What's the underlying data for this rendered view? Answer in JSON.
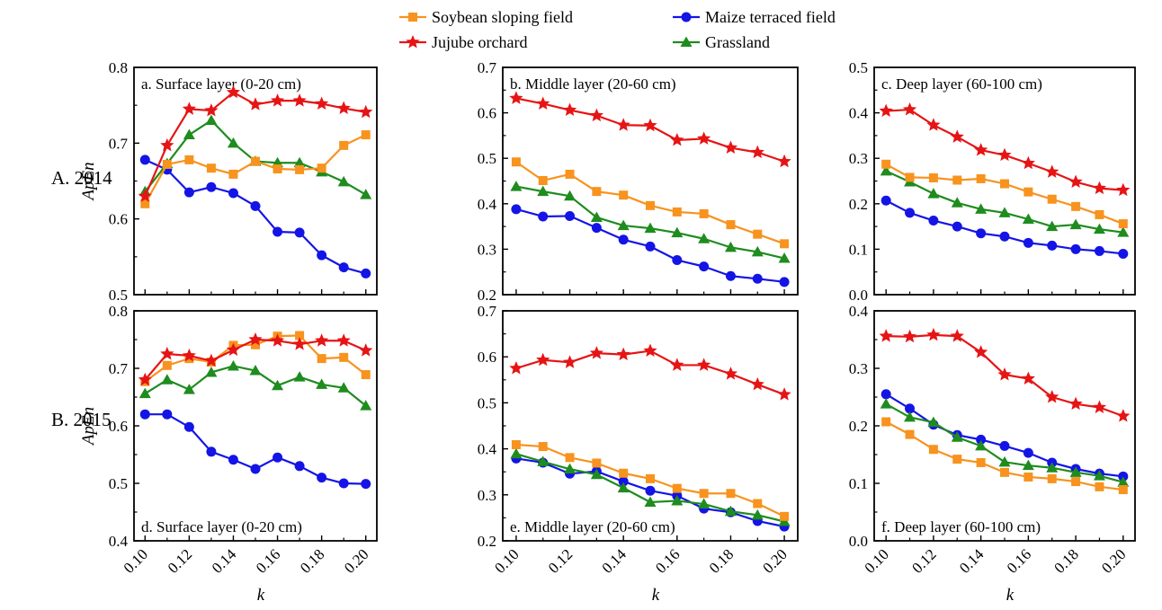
{
  "chart_data": {
    "type": "line",
    "legend": {
      "placement": "top-center",
      "entries": [
        {
          "name": "Soybean sloping field",
          "color": "#f7931e",
          "marker": "square"
        },
        {
          "name": "Maize terraced field",
          "color": "#1414e6",
          "marker": "circle"
        },
        {
          "name": "Jujube orchard",
          "color": "#e61414",
          "marker": "star"
        },
        {
          "name": "Grassland",
          "color": "#1e8c1e",
          "marker": "triangle"
        }
      ]
    },
    "row_labels": [
      "A. 2014",
      "B. 2015"
    ],
    "ylabel": "ApEn",
    "xlabel": "k",
    "x": [
      0.1,
      0.11,
      0.12,
      0.13,
      0.14,
      0.15,
      0.16,
      0.17,
      0.18,
      0.19,
      0.2
    ],
    "x_tick_values": [
      0.1,
      0.12,
      0.14,
      0.16,
      0.18,
      0.2
    ],
    "x_tick_labels": [
      "0.10",
      "0.12",
      "0.14",
      "0.16",
      "0.18",
      "0.20"
    ],
    "xlim": [
      0.095,
      0.205
    ],
    "grid": false,
    "panels": [
      {
        "label": "a. Surface layer (0-20 cm)",
        "label_pos": "top-left",
        "ylim": [
          0.5,
          0.8
        ],
        "yticks": [
          0.5,
          0.6,
          0.7,
          0.8
        ],
        "ytick_labels": [
          "0.5",
          "0.6",
          "0.7",
          "0.8"
        ],
        "series": [
          {
            "name": "Soybean sloping field",
            "values": [
              0.62,
              0.672,
              0.678,
              0.667,
              0.659,
              0.676,
              0.666,
              0.665,
              0.667,
              0.697,
              0.711
            ]
          },
          {
            "name": "Maize terraced field",
            "values": [
              0.678,
              0.665,
              0.635,
              0.642,
              0.634,
              0.617,
              0.583,
              0.582,
              0.552,
              0.536,
              0.528
            ]
          },
          {
            "name": "Jujube orchard",
            "values": [
              0.63,
              0.697,
              0.745,
              0.743,
              0.767,
              0.751,
              0.756,
              0.756,
              0.752,
              0.746,
              0.741
            ]
          },
          {
            "name": "Grassland",
            "values": [
              0.636,
              0.673,
              0.711,
              0.73,
              0.7,
              0.676,
              0.674,
              0.674,
              0.662,
              0.649,
              0.632
            ]
          }
        ]
      },
      {
        "label": "b. Middle layer (20-60 cm)",
        "label_pos": "top-left",
        "ylim": [
          0.2,
          0.7
        ],
        "yticks": [
          0.2,
          0.3,
          0.4,
          0.5,
          0.6,
          0.7
        ],
        "ytick_labels": [
          "0.2",
          "0.3",
          "0.4",
          "0.5",
          "0.6",
          "0.7"
        ],
        "series": [
          {
            "name": "Soybean sloping field",
            "values": [
              0.492,
              0.451,
              0.465,
              0.427,
              0.419,
              0.396,
              0.382,
              0.378,
              0.354,
              0.333,
              0.312
            ]
          },
          {
            "name": "Maize terraced field",
            "values": [
              0.388,
              0.372,
              0.373,
              0.347,
              0.321,
              0.306,
              0.276,
              0.262,
              0.241,
              0.235,
              0.228
            ]
          },
          {
            "name": "Jujube orchard",
            "values": [
              0.632,
              0.62,
              0.606,
              0.594,
              0.573,
              0.572,
              0.54,
              0.543,
              0.523,
              0.513,
              0.493
            ]
          },
          {
            "name": "Grassland",
            "values": [
              0.438,
              0.427,
              0.417,
              0.37,
              0.352,
              0.346,
              0.336,
              0.323,
              0.304,
              0.294,
              0.28
            ]
          }
        ]
      },
      {
        "label": "c. Deep layer (60-100 cm)",
        "label_pos": "top-left",
        "ylim": [
          0.0,
          0.5
        ],
        "yticks": [
          0.0,
          0.1,
          0.2,
          0.3,
          0.4,
          0.5
        ],
        "ytick_labels": [
          "0.0",
          "0.1",
          "0.2",
          "0.3",
          "0.4",
          "0.5"
        ],
        "series": [
          {
            "name": "Soybean sloping field",
            "values": [
              0.287,
              0.258,
              0.257,
              0.252,
              0.255,
              0.244,
              0.226,
              0.21,
              0.194,
              0.176,
              0.156
            ]
          },
          {
            "name": "Maize terraced field",
            "values": [
              0.207,
              0.18,
              0.163,
              0.15,
              0.135,
              0.128,
              0.114,
              0.108,
              0.1,
              0.096,
              0.09
            ]
          },
          {
            "name": "Jujube orchard",
            "values": [
              0.404,
              0.407,
              0.373,
              0.347,
              0.318,
              0.307,
              0.289,
              0.27,
              0.248,
              0.234,
              0.23
            ]
          },
          {
            "name": "Grassland",
            "values": [
              0.272,
              0.248,
              0.222,
              0.202,
              0.188,
              0.18,
              0.166,
              0.15,
              0.154,
              0.144,
              0.137
            ]
          }
        ]
      },
      {
        "label": "d. Surface layer (0-20 cm)",
        "label_pos": "bottom-left",
        "ylim": [
          0.4,
          0.8
        ],
        "yticks": [
          0.4,
          0.5,
          0.6,
          0.7,
          0.8
        ],
        "ytick_labels": [
          "0.4",
          "0.5",
          "0.6",
          "0.7",
          "0.8"
        ],
        "series": [
          {
            "name": "Soybean sloping field",
            "values": [
              0.677,
              0.705,
              0.717,
              0.711,
              0.74,
              0.741,
              0.756,
              0.757,
              0.717,
              0.719,
              0.689
            ]
          },
          {
            "name": "Maize terraced field",
            "values": [
              0.62,
              0.62,
              0.598,
              0.555,
              0.541,
              0.525,
              0.545,
              0.53,
              0.51,
              0.5,
              0.499
            ]
          },
          {
            "name": "Jujube orchard",
            "values": [
              0.68,
              0.725,
              0.722,
              0.713,
              0.732,
              0.75,
              0.748,
              0.742,
              0.748,
              0.748,
              0.731
            ]
          },
          {
            "name": "Grassland",
            "values": [
              0.656,
              0.68,
              0.663,
              0.693,
              0.704,
              0.696,
              0.67,
              0.685,
              0.672,
              0.666,
              0.635
            ]
          }
        ]
      },
      {
        "label": "e. Middle layer (20-60 cm)",
        "label_pos": "bottom-left",
        "ylim": [
          0.2,
          0.7
        ],
        "yticks": [
          0.2,
          0.3,
          0.4,
          0.5,
          0.6,
          0.7
        ],
        "ytick_labels": [
          "0.2",
          "0.3",
          "0.4",
          "0.5",
          "0.6",
          "0.7"
        ],
        "series": [
          {
            "name": "Soybean sloping field",
            "values": [
              0.409,
              0.405,
              0.381,
              0.369,
              0.347,
              0.335,
              0.314,
              0.303,
              0.303,
              0.281,
              0.253
            ]
          },
          {
            "name": "Maize terraced field",
            "values": [
              0.379,
              0.37,
              0.346,
              0.351,
              0.329,
              0.309,
              0.298,
              0.27,
              0.262,
              0.243,
              0.231
            ]
          },
          {
            "name": "Jujube orchard",
            "values": [
              0.575,
              0.593,
              0.588,
              0.608,
              0.605,
              0.613,
              0.582,
              0.582,
              0.563,
              0.54,
              0.518
            ]
          },
          {
            "name": "Grassland",
            "values": [
              0.389,
              0.372,
              0.356,
              0.344,
              0.315,
              0.284,
              0.287,
              0.28,
              0.264,
              0.256,
              0.242
            ]
          }
        ]
      },
      {
        "label": "f. Deep layer (60-100 cm)",
        "label_pos": "bottom-left",
        "ylim": [
          0.0,
          0.4
        ],
        "yticks": [
          0.0,
          0.1,
          0.2,
          0.3,
          0.4
        ],
        "ytick_labels": [
          "0.0",
          "0.1",
          "0.2",
          "0.3",
          "0.4"
        ],
        "series": [
          {
            "name": "Soybean sloping field",
            "values": [
              0.207,
              0.185,
              0.159,
              0.142,
              0.136,
              0.119,
              0.111,
              0.108,
              0.103,
              0.094,
              0.089
            ]
          },
          {
            "name": "Maize terraced field",
            "values": [
              0.255,
              0.23,
              0.202,
              0.184,
              0.176,
              0.165,
              0.153,
              0.136,
              0.125,
              0.117,
              0.112
            ]
          },
          {
            "name": "Jujube orchard",
            "values": [
              0.356,
              0.355,
              0.358,
              0.356,
              0.328,
              0.289,
              0.282,
              0.25,
              0.238,
              0.232,
              0.217
            ]
          },
          {
            "name": "Grassland",
            "values": [
              0.238,
              0.215,
              0.206,
              0.18,
              0.165,
              0.137,
              0.131,
              0.127,
              0.119,
              0.113,
              0.102
            ]
          }
        ]
      }
    ]
  }
}
